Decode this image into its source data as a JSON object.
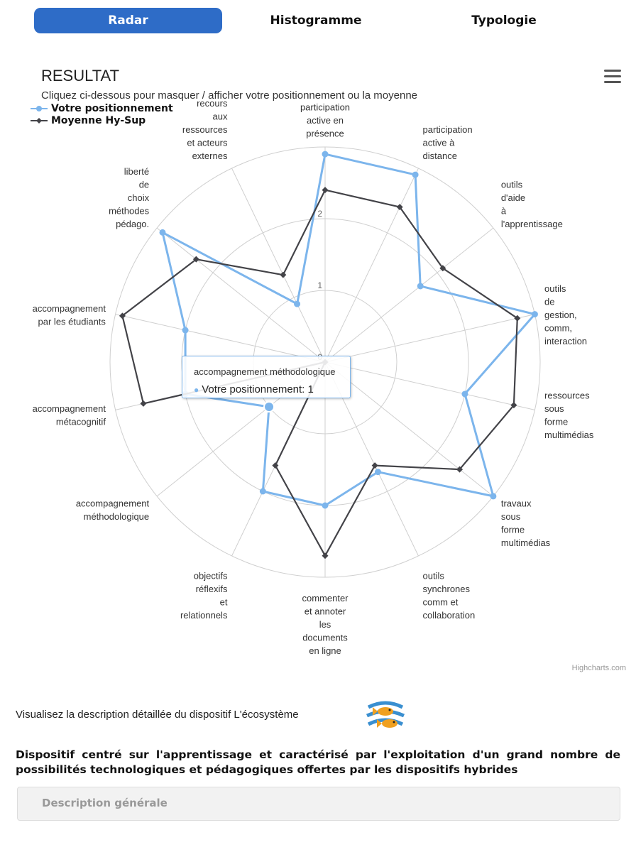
{
  "tabs": {
    "radar": "Radar",
    "histogramme": "Histogramme",
    "typologie": "Typologie"
  },
  "result_title": "RESULTAT",
  "subtitle": "Cliquez ci-dessous pour masquer / afficher votre positionnement ou la moyenne",
  "legend": {
    "votre": "Votre positionnement",
    "moyenne": "Moyenne Hy-Sup"
  },
  "tooltip": {
    "title": "accompagnement méthodologique",
    "body": "Votre positionnement: 1"
  },
  "credit": "Highcharts.com",
  "description_line": "Visualisez la description détaillée du dispositif L'écosystème",
  "device_description": "Dispositif centré sur l'apprentissage et caractérisé par l'exploitation d'un grand nombre de possibilités technologiques et pédagogiques offertes par les dispositifs hybrides",
  "description_panel": "Description générale",
  "icons": {
    "menu": "hamburger-menu-icon",
    "fish": "fish-ecosystem-icon"
  },
  "colors": {
    "votre": "#7cb5ec",
    "moyenne": "#434348",
    "tab_active": "#2e6cc7"
  },
  "chart_data": {
    "type": "radar",
    "categories": [
      "participation active en présence",
      "participation active à distance",
      "outils d'aide à l'apprentissage",
      "outils de gestion, comm, interaction",
      "ressources sous forme multimédias",
      "travaux sous forme multimédias",
      "outils synchrones comm et collaboration",
      "commenter et annoter les documents en ligne",
      "objectifs réflexifs et relationnels",
      "accompagnement méthodologique",
      "accompagnement métacognitif",
      "accompagnement par les étudiants",
      "liberté de choix méthodes pédago.",
      "recours aux ressources et acteurs externes"
    ],
    "labels": [
      [
        "participation",
        "active en",
        "présence"
      ],
      [
        "participation",
        "active à",
        "distance"
      ],
      [
        "outils",
        "d'aide",
        "à",
        "l'apprentissage"
      ],
      [
        "outils",
        "de",
        "gestion,",
        "comm,",
        "interaction"
      ],
      [
        "ressources",
        "sous",
        "forme",
        "multimédias"
      ],
      [
        "travaux",
        "sous",
        "forme",
        "multimédias"
      ],
      [
        "outils",
        "synchrones",
        "comm et",
        "collaboration"
      ],
      [
        "commenter",
        "et annoter",
        "les",
        "documents",
        "en ligne"
      ],
      [
        "objectifs",
        "réflexifs",
        "et",
        "relationnels"
      ],
      [
        "accompagnement",
        "méthodologique"
      ],
      [
        "accompagnement",
        "métacognitif"
      ],
      [
        "accompagnement",
        "par les étudiants"
      ],
      [
        "liberté",
        "de",
        "choix",
        "méthodes",
        "pédago."
      ],
      [
        "recours",
        "aux",
        "ressources",
        "et acteurs",
        "externes"
      ]
    ],
    "yticks": [
      "0",
      "1",
      "2"
    ],
    "ylim": [
      0,
      3
    ],
    "series": [
      {
        "name": "Votre positionnement",
        "values": [
          2.9,
          2.9,
          1.7,
          3.0,
          2.0,
          3.0,
          1.7,
          2.0,
          2.0,
          1.0,
          2.0,
          2.0,
          2.9,
          0.9
        ]
      },
      {
        "name": "Moyenne Hy-Sup",
        "values": [
          2.4,
          2.4,
          2.1,
          2.75,
          2.7,
          2.4,
          1.6,
          2.7,
          1.6,
          0.0,
          2.6,
          2.9,
          2.3,
          1.35
        ]
      }
    ]
  }
}
